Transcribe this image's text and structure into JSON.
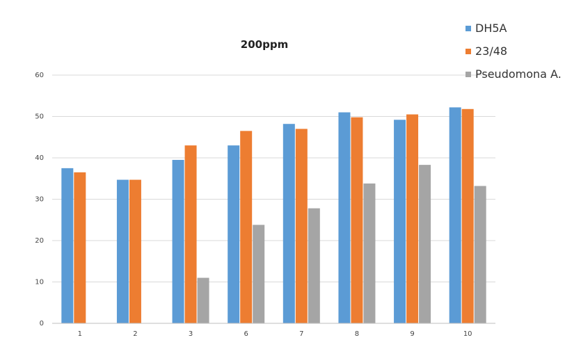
{
  "chart_data": {
    "type": "bar",
    "title": "200ppm",
    "xlabel": "",
    "ylabel": "",
    "categories": [
      "1",
      "2",
      "3",
      "6",
      "7",
      "8",
      "9",
      "10"
    ],
    "ylim": [
      0,
      60
    ],
    "yticks": [
      "0",
      "10",
      "20",
      "30",
      "40",
      "50",
      "60"
    ],
    "grid": true,
    "legend_position": "top-right",
    "series": [
      {
        "name": "DH5A",
        "color": "#5b9bd5",
        "values": [
          37.5,
          34.7,
          39.5,
          43,
          48.2,
          51,
          49.2,
          52.2
        ]
      },
      {
        "name": "23/48",
        "color": "#ed7d31",
        "values": [
          36.5,
          34.7,
          43,
          46.5,
          47,
          49.8,
          50.5,
          51.8
        ]
      },
      {
        "name": "Pseudomona A.",
        "color": "#a5a5a5",
        "values": [
          0,
          0,
          11,
          23.8,
          27.8,
          33.8,
          38.3,
          33.2
        ]
      }
    ]
  }
}
